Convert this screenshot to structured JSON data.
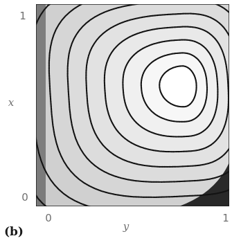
{
  "chart_data": {
    "type": "contour",
    "panel_label": "(b)",
    "xlabel": "y",
    "ylabel": "x",
    "x_ticks": [
      "0",
      "1"
    ],
    "y_ticks": [
      "1",
      "0"
    ],
    "xlim": [
      0,
      1
    ],
    "ylim": [
      0,
      1
    ],
    "grid": false,
    "legend": "none",
    "colormap": [
      "#0a0a0a",
      "#ffffff"
    ],
    "center": {
      "y": 0.76,
      "x": 0.6
    },
    "contour_levels": 13
  }
}
